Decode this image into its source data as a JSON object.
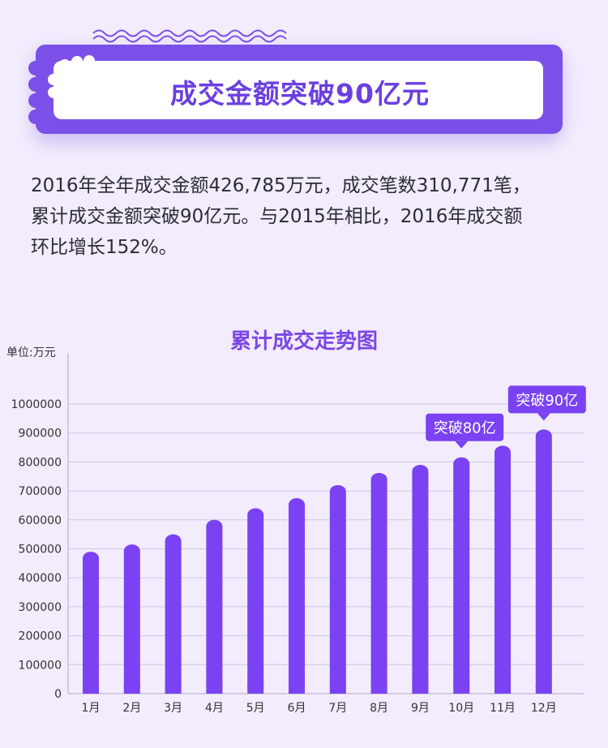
{
  "banner": {
    "title": "成交金额突破90亿元"
  },
  "intro": {
    "lines": [
      "2016年全年成交金额426,785万元，成交笔数310,771笔，",
      "累计成交金额突破90亿元。与2015年相比，2016年成交额",
      "环比增长152%。"
    ]
  },
  "colors": {
    "bar": "#7a42f2",
    "accent": "#7b47e6",
    "banner_frame": "#7a50e8"
  },
  "chart_data": {
    "type": "bar",
    "title": "累计成交走势图",
    "unit_label": "单位:万元",
    "categories": [
      "1月",
      "2月",
      "3月",
      "4月",
      "5月",
      "6月",
      "7月",
      "8月",
      "9月",
      "10月",
      "11月",
      "12月"
    ],
    "values": [
      490000,
      515000,
      550000,
      600000,
      640000,
      675000,
      720000,
      762000,
      790000,
      816000,
      856000,
      912000
    ],
    "ylim": [
      0,
      1000000
    ],
    "yticks": [
      "0",
      "100000",
      "200000",
      "300000",
      "400000",
      "500000",
      "600000",
      "700000",
      "800000",
      "900000",
      "1000000"
    ],
    "grid": true,
    "annotations": [
      {
        "text": "突破80亿",
        "category": "10月"
      },
      {
        "text": "突破90亿",
        "category": "12月"
      }
    ]
  }
}
